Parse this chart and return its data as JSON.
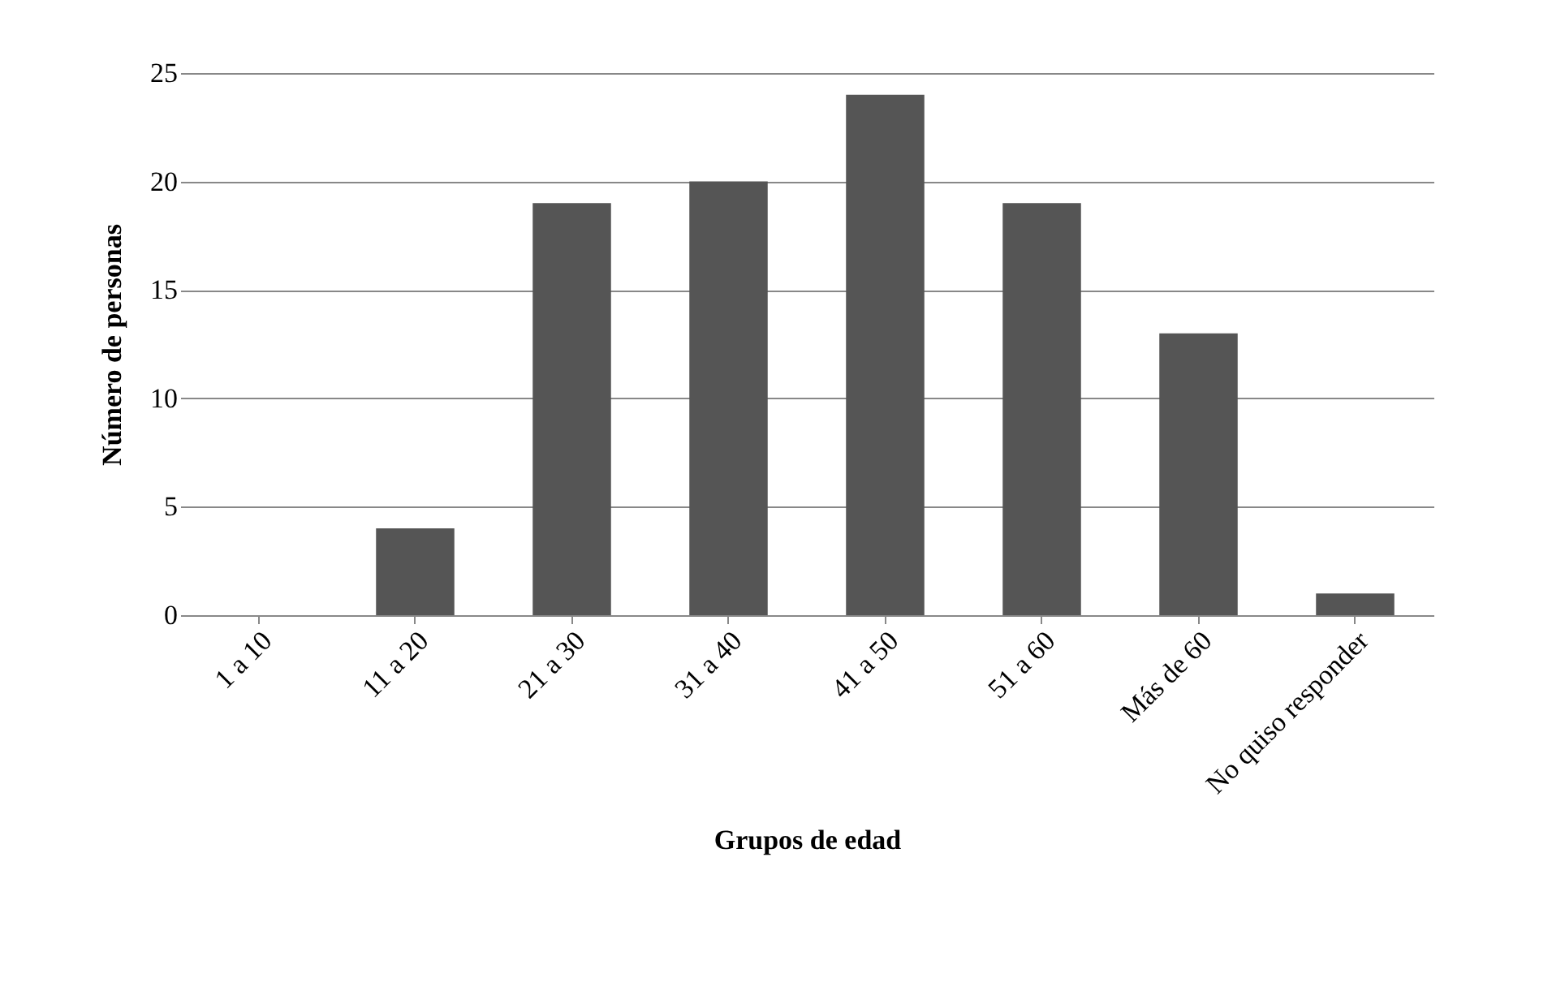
{
  "chart_data": {
    "type": "bar",
    "xlabel": "Grupos de edad",
    "ylabel": "Número de personas",
    "categories": [
      "1 a 10",
      "11 a 20",
      "21 a 30",
      "31 a 40",
      "41 a 50",
      "51 a 60",
      "Más de 60",
      "No quiso responder"
    ],
    "values": [
      0,
      4,
      19,
      20,
      24,
      19,
      13,
      1
    ],
    "color": "#555555",
    "ylim": [
      0,
      25
    ],
    "yticks": [
      0,
      5,
      10,
      15,
      20,
      25
    ],
    "grid": "y"
  }
}
